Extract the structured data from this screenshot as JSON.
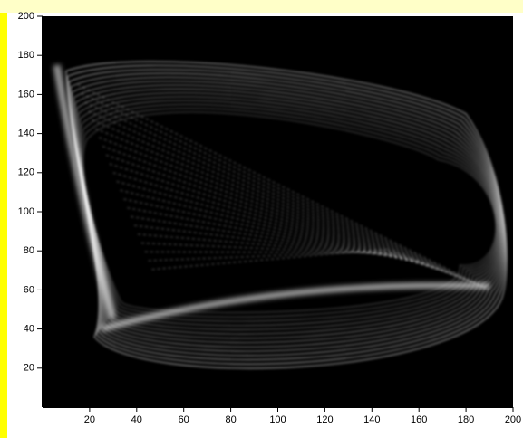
{
  "chart_data": {
    "type": "image",
    "xlim": [
      0,
      200
    ],
    "ylim": [
      0,
      200
    ],
    "xticks": [
      20,
      40,
      60,
      80,
      100,
      120,
      140,
      160,
      180,
      200
    ],
    "yticks": [
      20,
      40,
      60,
      80,
      100,
      120,
      140,
      160,
      180,
      200
    ]
  }
}
